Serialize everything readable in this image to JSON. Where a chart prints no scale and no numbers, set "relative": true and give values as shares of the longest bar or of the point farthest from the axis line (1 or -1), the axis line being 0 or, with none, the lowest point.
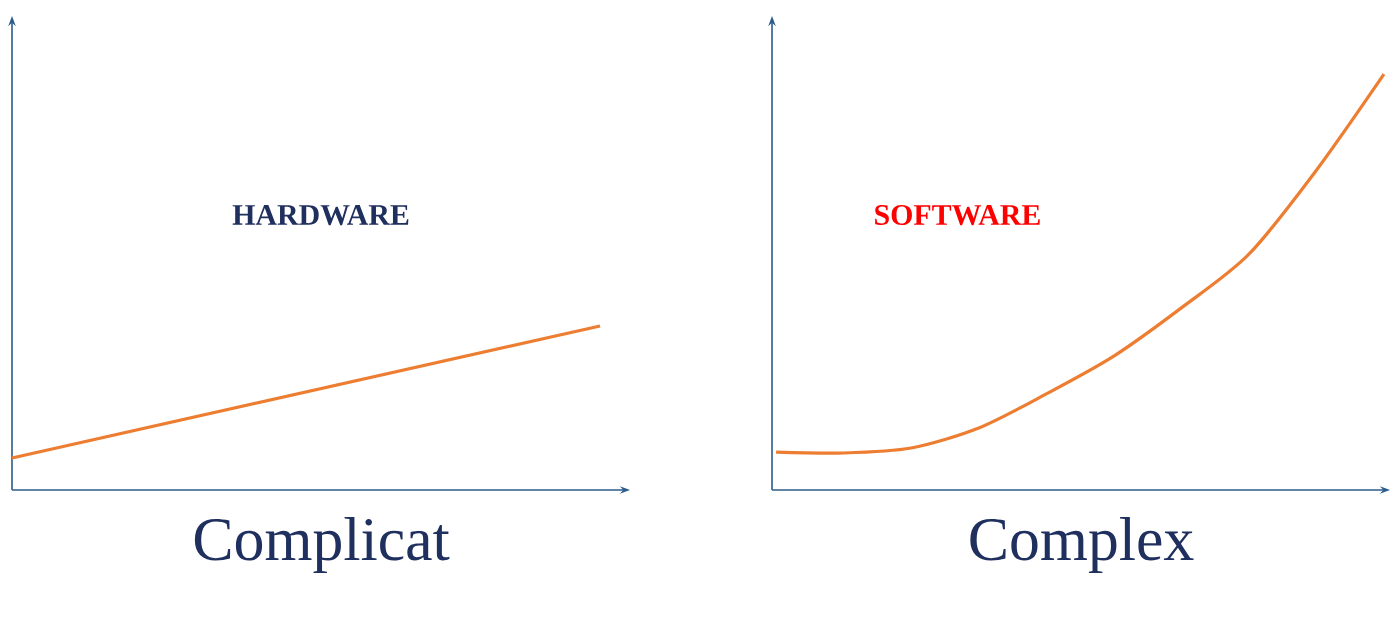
{
  "chart_data": [
    {
      "type": "line",
      "relative": true,
      "xlabel": "Complicat",
      "annotations": [
        "HARDWARE"
      ],
      "categories": [
        null,
        null
      ],
      "series": [
        {
          "color": "#ed7d31",
          "values": [
            0.195,
            1
          ]
        }
      ]
    },
    {
      "type": "line",
      "relative": true,
      "xlabel": "Complex",
      "annotations": [
        "SOFTWARE"
      ],
      "categories": [
        null,
        null,
        null,
        null,
        null,
        null,
        null,
        null,
        null,
        null
      ],
      "series": [
        {
          "color": "#ed7d31",
          "values": [
            0.091,
            0.089,
            0.101,
            0.149,
            0.231,
            0.322,
            0.438,
            0.567,
            0.769,
            1
          ]
        }
      ]
    }
  ]
}
